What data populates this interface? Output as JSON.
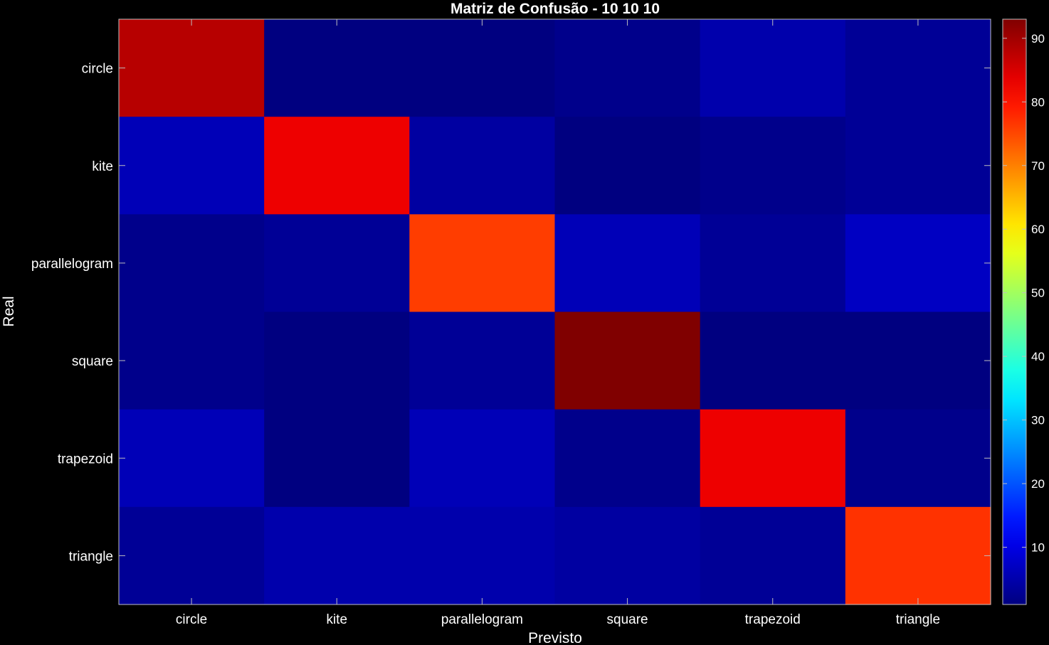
{
  "chart_data": {
    "type": "heatmap",
    "title": "Matriz de Confusão - 10  10  10",
    "xlabel": "Previsto",
    "ylabel": "Real",
    "x_categories": [
      "circle",
      "kite",
      "parallelogram",
      "square",
      "trapezoid",
      "triangle"
    ],
    "y_categories": [
      "circle",
      "kite",
      "parallelogram",
      "square",
      "trapezoid",
      "triangle"
    ],
    "values": [
      [
        88,
        1,
        1,
        2,
        5,
        3
      ],
      [
        6,
        83,
        4,
        1,
        2,
        3
      ],
      [
        2,
        3,
        76,
        6,
        3,
        7
      ],
      [
        2,
        1,
        3,
        93,
        1,
        1
      ],
      [
        6,
        1,
        6,
        2,
        83,
        2
      ],
      [
        3,
        5,
        5,
        4,
        3,
        77
      ]
    ],
    "colorbar": {
      "colormap": "jet",
      "range": [
        1,
        93
      ],
      "ticks": [
        10,
        20,
        30,
        40,
        50,
        60,
        70,
        80,
        90
      ]
    },
    "grid": false
  }
}
